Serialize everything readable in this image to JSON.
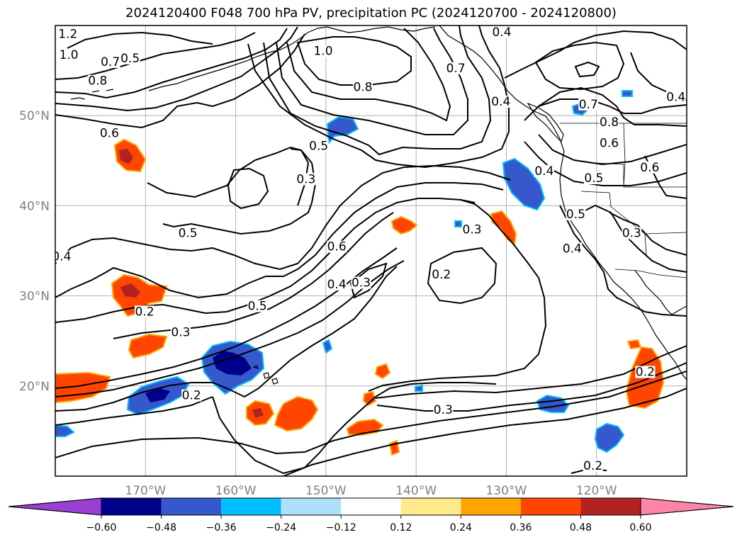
{
  "title": "2024120400 F048 700 hPa PV, precipitation PC (2024120700 - 2024120800)",
  "map": {
    "projection": "PlateCarree",
    "lon_range": [
      -180,
      -110
    ],
    "lat_range": [
      10,
      60
    ],
    "gridlines": true,
    "lon_ticks": [
      {
        "value": -170,
        "label": "170°W"
      },
      {
        "value": -160,
        "label": "160°W"
      },
      {
        "value": -150,
        "label": "150°W"
      },
      {
        "value": -140,
        "label": "140°W"
      },
      {
        "value": -130,
        "label": "130°W"
      },
      {
        "value": -120,
        "label": "120°W"
      }
    ],
    "lat_ticks": [
      {
        "value": 50,
        "label": "50°N"
      },
      {
        "value": 40,
        "label": "40°N"
      },
      {
        "value": 30,
        "label": "30°N"
      },
      {
        "value": 20,
        "label": "20°N"
      }
    ],
    "contour_labels": [
      {
        "text": "1.2",
        "lon": -178.6,
        "lat": 58.7
      },
      {
        "text": "1.0",
        "lon": -178.5,
        "lat": 56.4
      },
      {
        "text": "0.7",
        "lon": -173.9,
        "lat": 55.6
      },
      {
        "text": "0.5",
        "lon": -171.7,
        "lat": 56.0
      },
      {
        "text": "0.8",
        "lon": -175.3,
        "lat": 53.5
      },
      {
        "text": "0.6",
        "lon": -174.0,
        "lat": 47.7
      },
      {
        "text": "1.0",
        "lon": -150.3,
        "lat": 56.8
      },
      {
        "text": "0.8",
        "lon": -145.9,
        "lat": 52.8
      },
      {
        "text": "0.4",
        "lon": -130.5,
        "lat": 58.9
      },
      {
        "text": "0.7",
        "lon": -135.6,
        "lat": 54.9
      },
      {
        "text": "0.4",
        "lon": -130.6,
        "lat": 51.2
      },
      {
        "text": "0.7",
        "lon": -120.9,
        "lat": 50.9
      },
      {
        "text": "0.8",
        "lon": -118.6,
        "lat": 48.9
      },
      {
        "text": "0.6",
        "lon": -118.6,
        "lat": 46.6
      },
      {
        "text": "0.4",
        "lon": -111.2,
        "lat": 51.7
      },
      {
        "text": "0.6",
        "lon": -114.1,
        "lat": 43.9
      },
      {
        "text": "0.4",
        "lon": -125.8,
        "lat": 43.5
      },
      {
        "text": "0.5",
        "lon": -120.3,
        "lat": 42.7
      },
      {
        "text": "0.5",
        "lon": -122.3,
        "lat": 38.7
      },
      {
        "text": "0.3",
        "lon": -116.1,
        "lat": 36.6
      },
      {
        "text": "0.4",
        "lon": -122.7,
        "lat": 34.9
      },
      {
        "text": "0.5",
        "lon": -150.8,
        "lat": 46.3
      },
      {
        "text": "0.3",
        "lon": -152.2,
        "lat": 42.6
      },
      {
        "text": "0.5",
        "lon": -165.3,
        "lat": 36.6
      },
      {
        "text": "0.4",
        "lon": -179.3,
        "lat": 34.0
      },
      {
        "text": "0.6",
        "lon": -148.8,
        "lat": 35.1
      },
      {
        "text": "0.3",
        "lon": -133.8,
        "lat": 37.0
      },
      {
        "text": "0.4",
        "lon": -148.8,
        "lat": 30.9
      },
      {
        "text": "0.3",
        "lon": -146.1,
        "lat": 31.1
      },
      {
        "text": "0.5",
        "lon": -157.6,
        "lat": 28.5
      },
      {
        "text": "0.2",
        "lon": -137.2,
        "lat": 32.0
      },
      {
        "text": "0.2",
        "lon": -170.1,
        "lat": 27.9
      },
      {
        "text": "0.3",
        "lon": -166.1,
        "lat": 25.6
      },
      {
        "text": "0.2",
        "lon": -164.9,
        "lat": 18.6
      },
      {
        "text": "0.3",
        "lon": -137.0,
        "lat": 17.0
      },
      {
        "text": "0.2",
        "lon": -114.6,
        "lat": 21.2
      },
      {
        "text": "0.2",
        "lon": -120.4,
        "lat": 10.8
      }
    ]
  },
  "colorbar": {
    "levels": [
      -0.6,
      -0.48,
      -0.36,
      -0.24,
      -0.12,
      0.12,
      0.24,
      0.36,
      0.48,
      0.6
    ],
    "tick_labels": [
      "−0.60",
      "−0.48",
      "−0.36",
      "−0.24",
      "−0.12",
      "0.12",
      "0.24",
      "0.36",
      "0.48",
      "0.60"
    ],
    "colors": [
      "#9a3fd4",
      "#00008b",
      "#3558cc",
      "#00bfff",
      "#aee0fa",
      "#ffffff",
      "#ffe98a",
      "#ffa500",
      "#ff4500",
      "#b22222",
      "#ff85a8"
    ]
  },
  "legend_colors": {
    "strong_negative": "#00008b",
    "negative": "#3558cc",
    "weak_negative": "#00bfff",
    "strong_positive": "#b22222",
    "positive": "#ff4500",
    "weak_positive": "#ffa500",
    "edge_positive": "#ffe98a"
  }
}
